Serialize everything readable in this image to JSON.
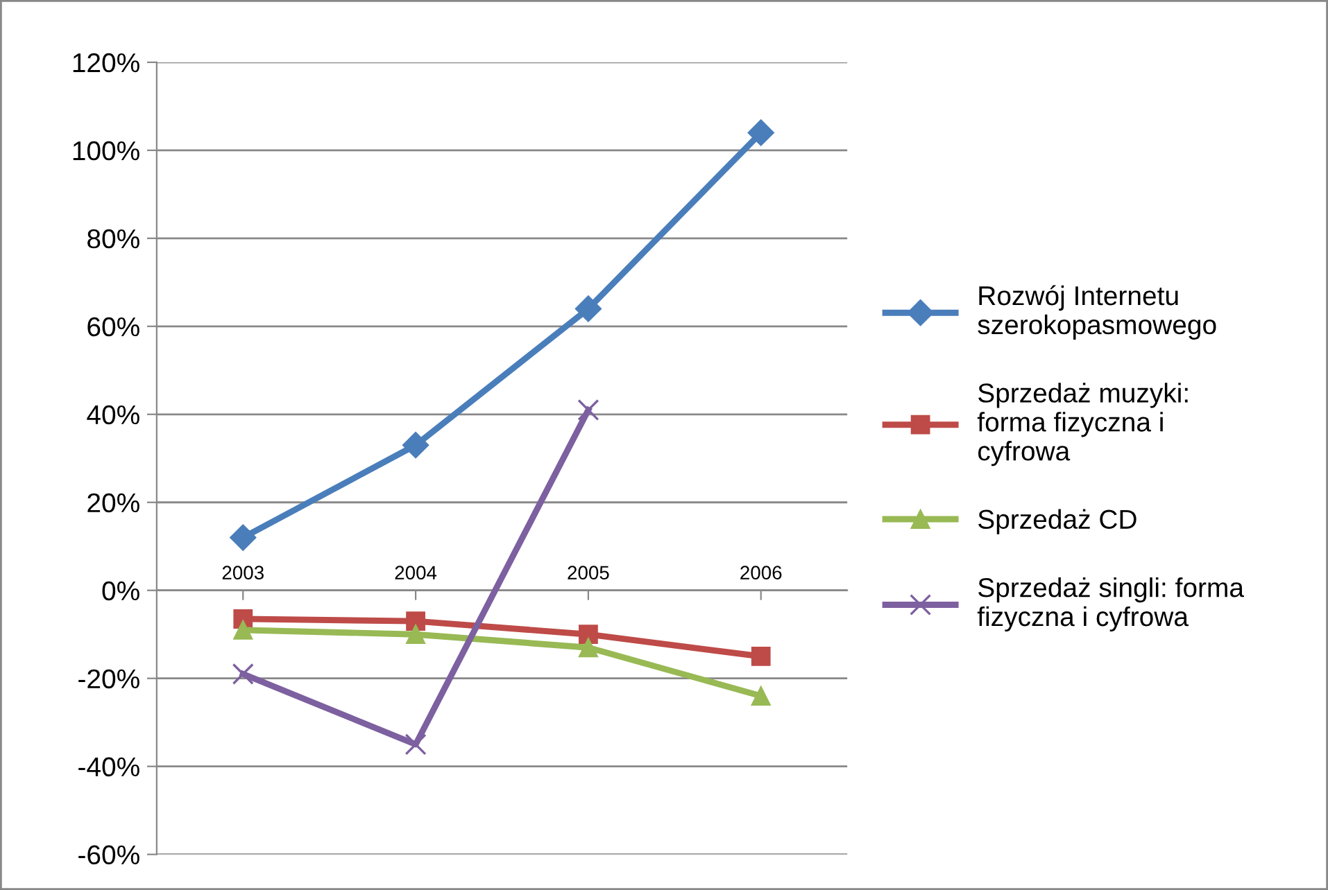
{
  "chart_data": {
    "type": "line",
    "categories": [
      "2003",
      "2004",
      "2005",
      "2006"
    ],
    "series": [
      {
        "name": "Rozwój Internetu\nszerokopasmowego",
        "color": "#4a7ebb",
        "marker": "diamond",
        "values": [
          12,
          33,
          64,
          104
        ]
      },
      {
        "name": "Sprzedaż muzyki:\nforma fizyczna i\ncyfrowa",
        "color": "#be4b48",
        "marker": "square",
        "values": [
          -6.5,
          -7,
          -10,
          -15
        ]
      },
      {
        "name": "Sprzedaż CD",
        "color": "#98b954",
        "marker": "triangle",
        "values": [
          -9,
          -10,
          -13,
          -24
        ]
      },
      {
        "name": "Sprzedaż singli: forma\nfizyczna i cyfrowa",
        "color": "#7d60a0",
        "marker": "cross",
        "values": [
          -19,
          -35,
          41,
          null
        ]
      }
    ],
    "ylim": [
      -60,
      120
    ],
    "yticks": [
      {
        "value": -60,
        "label": "-60%"
      },
      {
        "value": -40,
        "label": "-40%"
      },
      {
        "value": -20,
        "label": "-20%"
      },
      {
        "value": 0,
        "label": "0%"
      },
      {
        "value": 20,
        "label": "20%"
      },
      {
        "value": 40,
        "label": "40%"
      },
      {
        "value": 60,
        "label": "60%"
      },
      {
        "value": 80,
        "label": "80%"
      },
      {
        "value": 100,
        "label": "100%"
      },
      {
        "value": 120,
        "label": "120%"
      }
    ],
    "grid": "y",
    "legend": "right",
    "line_style": "solid"
  }
}
